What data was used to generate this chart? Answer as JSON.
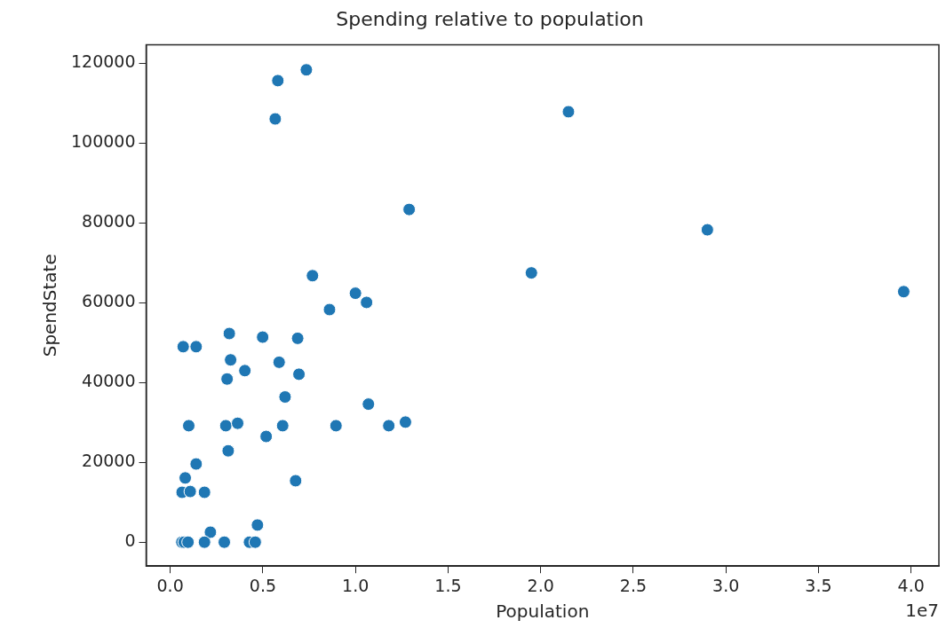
{
  "chart_data": {
    "type": "scatter",
    "title": "Spending relative to population",
    "xlabel": "Population",
    "ylabel": "SpendState",
    "annotations": [
      "1e7"
    ],
    "marker": "circle",
    "grid": false,
    "legend": false,
    "xlim": [
      -0.13,
      4.15
    ],
    "ylim": [
      -6000,
      124700
    ],
    "xticks": [
      {
        "value": 0,
        "label": "0.0"
      },
      0.5,
      {
        "value": 1,
        "label": "1.0"
      },
      1.5,
      {
        "value": 2,
        "label": "2.0"
      },
      2.5,
      {
        "value": 3,
        "label": "3.0"
      },
      3.5,
      {
        "value": 4,
        "label": "4.0"
      }
    ],
    "yticks": [
      0,
      20000,
      40000,
      60000,
      80000,
      100000,
      120000
    ],
    "series": [
      {
        "color": "#1f77b4",
        "x": [
          0.735,
          0.581,
          0.567,
          2.15,
          1.29,
          2.9,
          1.95,
          3.96,
          0.768,
          1.0,
          1.06,
          0.86,
          0.319,
          0.499,
          0.688,
          0.07,
          0.14,
          0.326,
          0.588,
          0.403,
          0.307,
          0.695,
          0.62,
          1.07,
          0.1,
          0.3,
          0.364,
          0.607,
          0.895,
          1.18,
          1.27,
          0.518,
          0.313,
          0.14,
          0.081,
          0.064,
          0.108,
          0.185,
          0.677,
          0.471,
          0.217,
          0.063,
          0.075,
          0.096,
          0.185,
          0.292,
          0.428,
          0.459
        ],
        "values": [
          118400,
          115700,
          106100,
          107900,
          83400,
          78300,
          67500,
          62800,
          66800,
          62400,
          60100,
          58300,
          52300,
          51400,
          51100,
          49000,
          49000,
          45700,
          45100,
          43000,
          40900,
          42100,
          36400,
          34600,
          29200,
          29200,
          29800,
          29200,
          29200,
          29200,
          30100,
          26500,
          22900,
          19600,
          16100,
          12500,
          12700,
          12500,
          15400,
          4300,
          2500,
          0,
          0,
          0,
          0,
          0,
          0,
          0
        ]
      }
    ]
  }
}
